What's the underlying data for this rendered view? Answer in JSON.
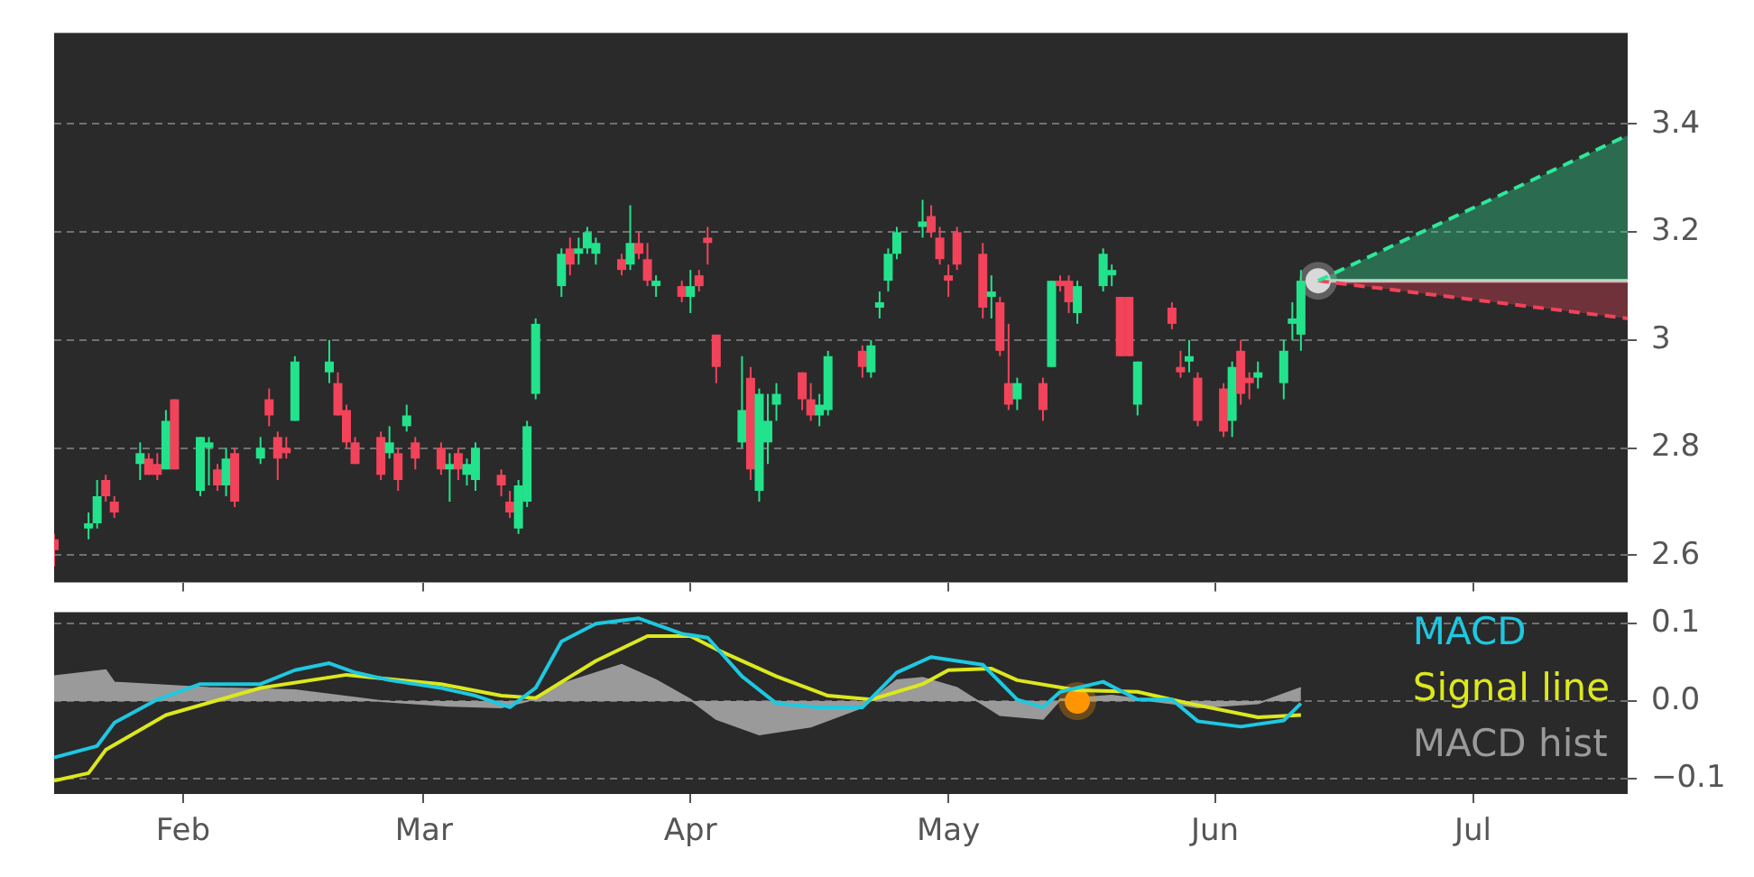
{
  "chart_data": [
    {
      "type": "candlestick",
      "x": [
        "--01-17",
        "--01-21",
        "--01-22",
        "--01-23",
        "--01-24",
        "--01-27",
        "--01-28",
        "--01-29",
        "--01-30",
        "--01-31",
        "--02-03",
        "--02-04",
        "--02-05",
        "--02-06",
        "--02-07",
        "--02-10",
        "--02-11",
        "--02-12",
        "--02-13",
        "--02-14",
        "--02-18",
        "--02-19",
        "--02-20",
        "--02-21",
        "--02-24",
        "--02-25",
        "--02-26",
        "--02-27",
        "--02-28",
        "--03-03",
        "--03-04",
        "--03-05",
        "--03-06",
        "--03-07",
        "--03-10",
        "--03-11",
        "--03-12",
        "--03-13",
        "--03-14",
        "--03-17",
        "--03-18",
        "--03-19",
        "--03-20",
        "--03-21",
        "--03-24",
        "--03-25",
        "--03-26",
        "--03-27",
        "--03-28",
        "--03-31",
        "--04-01",
        "--04-02",
        "--04-03",
        "--04-04",
        "--04-07",
        "--04-08",
        "--04-09",
        "--04-10",
        "--04-11",
        "--04-14",
        "--04-15",
        "--04-16",
        "--04-17",
        "--04-21",
        "--04-22",
        "--04-23",
        "--04-24",
        "--04-25",
        "--04-28",
        "--04-29",
        "--04-30",
        "--05-01",
        "--05-02",
        "--05-05",
        "--05-06",
        "--05-07",
        "--05-08",
        "--05-09",
        "--05-12",
        "--05-13",
        "--05-14",
        "--05-15",
        "--05-16",
        "--05-19",
        "--05-20",
        "--05-21",
        "--05-22",
        "--05-23",
        "--05-27",
        "--05-28",
        "--05-29",
        "--05-30",
        "--06-02",
        "--06-03",
        "--06-04",
        "--06-05",
        "--06-06",
        "--06-09",
        "--06-10",
        "--06-11"
      ],
      "ohlc": [
        [
          2.63,
          2.64,
          2.58,
          2.61
        ],
        [
          2.65,
          2.68,
          2.63,
          2.66
        ],
        [
          2.66,
          2.74,
          2.65,
          2.71
        ],
        [
          2.74,
          2.75,
          2.7,
          2.71
        ],
        [
          2.7,
          2.71,
          2.67,
          2.68
        ],
        [
          2.77,
          2.81,
          2.74,
          2.79
        ],
        [
          2.78,
          2.79,
          2.75,
          2.75
        ],
        [
          2.77,
          2.79,
          2.74,
          2.75
        ],
        [
          2.76,
          2.87,
          2.76,
          2.85
        ],
        [
          2.89,
          2.89,
          2.76,
          2.76
        ],
        [
          2.72,
          2.82,
          2.71,
          2.82
        ],
        [
          2.8,
          2.82,
          2.73,
          2.81
        ],
        [
          2.76,
          2.77,
          2.72,
          2.73
        ],
        [
          2.73,
          2.8,
          2.71,
          2.78
        ],
        [
          2.79,
          2.8,
          2.69,
          2.7
        ],
        [
          2.78,
          2.82,
          2.77,
          2.8
        ],
        [
          2.89,
          2.91,
          2.84,
          2.86
        ],
        [
          2.82,
          2.83,
          2.74,
          2.78
        ],
        [
          2.8,
          2.82,
          2.78,
          2.79
        ],
        [
          2.85,
          2.97,
          2.85,
          2.96
        ],
        [
          2.94,
          3.0,
          2.92,
          2.96
        ],
        [
          2.92,
          2.94,
          2.86,
          2.86
        ],
        [
          2.87,
          2.88,
          2.8,
          2.81
        ],
        [
          2.81,
          2.82,
          2.77,
          2.77
        ],
        [
          2.82,
          2.83,
          2.74,
          2.75
        ],
        [
          2.79,
          2.84,
          2.78,
          2.81
        ],
        [
          2.79,
          2.8,
          2.72,
          2.74
        ],
        [
          2.84,
          2.88,
          2.83,
          2.86
        ],
        [
          2.81,
          2.82,
          2.76,
          2.78
        ],
        [
          2.8,
          2.81,
          2.75,
          2.76
        ],
        [
          2.76,
          2.79,
          2.7,
          2.77
        ],
        [
          2.79,
          2.8,
          2.74,
          2.76
        ],
        [
          2.75,
          2.78,
          2.73,
          2.77
        ],
        [
          2.74,
          2.81,
          2.72,
          2.8
        ],
        [
          2.75,
          2.76,
          2.71,
          2.73
        ],
        [
          2.7,
          2.72,
          2.67,
          2.68
        ],
        [
          2.65,
          2.74,
          2.64,
          2.73
        ],
        [
          2.7,
          2.85,
          2.69,
          2.84
        ],
        [
          2.9,
          3.04,
          2.89,
          3.03
        ],
        [
          3.1,
          3.17,
          3.08,
          3.16
        ],
        [
          3.17,
          3.19,
          3.12,
          3.14
        ],
        [
          3.16,
          3.19,
          3.14,
          3.17
        ],
        [
          3.17,
          3.21,
          3.16,
          3.2
        ],
        [
          3.16,
          3.19,
          3.14,
          3.18
        ],
        [
          3.15,
          3.16,
          3.12,
          3.13
        ],
        [
          3.14,
          3.25,
          3.13,
          3.18
        ],
        [
          3.18,
          3.2,
          3.15,
          3.16
        ],
        [
          3.15,
          3.18,
          3.1,
          3.11
        ],
        [
          3.1,
          3.12,
          3.08,
          3.11
        ],
        [
          3.1,
          3.11,
          3.07,
          3.08
        ],
        [
          3.08,
          3.13,
          3.05,
          3.1
        ],
        [
          3.12,
          3.13,
          3.09,
          3.1
        ],
        [
          3.19,
          3.21,
          3.14,
          3.18
        ],
        [
          3.01,
          3.01,
          2.92,
          2.95
        ],
        [
          2.81,
          2.97,
          2.8,
          2.87
        ],
        [
          2.93,
          2.95,
          2.74,
          2.76
        ],
        [
          2.72,
          2.91,
          2.7,
          2.9
        ],
        [
          2.81,
          2.9,
          2.77,
          2.85
        ],
        [
          2.88,
          2.92,
          2.85,
          2.9
        ],
        [
          2.94,
          2.94,
          2.87,
          2.89
        ],
        [
          2.89,
          2.92,
          2.85,
          2.86
        ],
        [
          2.86,
          2.9,
          2.84,
          2.88
        ],
        [
          2.87,
          2.98,
          2.86,
          2.97
        ],
        [
          2.98,
          2.99,
          2.93,
          2.95
        ],
        [
          2.94,
          3.0,
          2.93,
          2.99
        ],
        [
          3.06,
          3.09,
          3.04,
          3.07
        ],
        [
          3.11,
          3.17,
          3.09,
          3.16
        ],
        [
          3.16,
          3.21,
          3.15,
          3.2
        ],
        [
          3.21,
          3.26,
          3.19,
          3.22
        ],
        [
          3.23,
          3.25,
          3.19,
          3.2
        ],
        [
          3.19,
          3.21,
          3.14,
          3.15
        ],
        [
          3.12,
          3.14,
          3.08,
          3.11
        ],
        [
          3.2,
          3.21,
          3.13,
          3.14
        ],
        [
          3.16,
          3.18,
          3.04,
          3.06
        ],
        [
          3.08,
          3.12,
          3.04,
          3.09
        ],
        [
          3.07,
          3.08,
          2.97,
          2.98
        ],
        [
          2.92,
          3.03,
          2.87,
          2.88
        ],
        [
          2.89,
          2.93,
          2.87,
          2.92
        ],
        [
          2.92,
          2.93,
          2.85,
          2.87
        ],
        [
          2.95,
          3.11,
          2.95,
          3.11
        ],
        [
          3.11,
          3.12,
          3.09,
          3.1
        ],
        [
          3.11,
          3.12,
          3.05,
          3.07
        ],
        [
          3.05,
          3.11,
          3.03,
          3.1
        ],
        [
          3.1,
          3.17,
          3.09,
          3.16
        ],
        [
          3.12,
          3.14,
          3.1,
          3.13
        ],
        [
          3.08,
          3.08,
          2.97,
          2.97
        ],
        [
          3.08,
          3.08,
          2.97,
          2.97
        ],
        [
          2.88,
          2.96,
          2.86,
          2.96
        ],
        [
          3.06,
          3.07,
          3.02,
          3.03
        ],
        [
          2.95,
          2.98,
          2.93,
          2.94
        ],
        [
          2.96,
          3.0,
          2.94,
          2.97
        ],
        [
          2.93,
          2.94,
          2.84,
          2.85
        ],
        [
          2.91,
          2.92,
          2.82,
          2.83
        ],
        [
          2.85,
          2.96,
          2.82,
          2.95
        ],
        [
          2.98,
          3.0,
          2.88,
          2.9
        ],
        [
          2.93,
          2.94,
          2.89,
          2.92
        ],
        [
          2.93,
          2.96,
          2.91,
          2.94
        ],
        [
          2.92,
          3.0,
          2.89,
          2.98
        ],
        [
          3.03,
          3.07,
          3.0,
          3.04
        ],
        [
          3.01,
          3.13,
          2.98,
          3.11
        ]
      ],
      "colors": [
        "#f2435a",
        "#22e38c",
        "#22e38c",
        "#f2435a",
        "#f2435a",
        "#22e38c",
        "#f2435a",
        "#f2435a",
        "#22e38c",
        "#f2435a",
        "#22e38c",
        "#22e38c",
        "#f2435a",
        "#22e38c",
        "#f2435a",
        "#22e38c",
        "#f2435a",
        "#f2435a",
        "#f2435a",
        "#22e38c",
        "#22e38c",
        "#f2435a",
        "#f2435a",
        "#f2435a",
        "#f2435a",
        "#22e38c",
        "#f2435a",
        "#22e38c",
        "#f2435a",
        "#f2435a",
        "#22e38c",
        "#f2435a",
        "#22e38c",
        "#22e38c",
        "#f2435a",
        "#f2435a",
        "#22e38c",
        "#22e38c",
        "#22e38c",
        "#22e38c",
        "#f2435a",
        "#22e38c",
        "#22e38c",
        "#22e38c",
        "#f2435a",
        "#22e38c",
        "#f2435a",
        "#f2435a",
        "#22e38c",
        "#f2435a",
        "#22e38c",
        "#f2435a",
        "#f2435a",
        "#f2435a",
        "#22e38c",
        "#f2435a",
        "#22e38c",
        "#22e38c",
        "#22e38c",
        "#f2435a",
        "#f2435a",
        "#22e38c",
        "#22e38c",
        "#f2435a",
        "#22e38c",
        "#22e38c",
        "#22e38c",
        "#22e38c",
        "#22e38c",
        "#f2435a",
        "#f2435a",
        "#f2435a",
        "#f2435a",
        "#f2435a",
        "#22e38c",
        "#f2435a",
        "#f2435a",
        "#22e38c",
        "#f2435a",
        "#22e38c",
        "#f2435a",
        "#f2435a",
        "#22e38c",
        "#22e38c",
        "#22e38c",
        "#f2435a",
        "#f2435a",
        "#22e38c",
        "#f2435a",
        "#f2435a",
        "#22e38c",
        "#f2435a",
        "#f2435a",
        "#22e38c",
        "#f2435a",
        "#f2435a",
        "#22e38c",
        "#22e38c",
        "#22e38c",
        "#22e38c"
      ],
      "series": [
        {
          "type": "line",
          "color": "#2ee89a",
          "line_style": "dashed",
          "x": [
            "--06-13",
            "--07-19"
          ],
          "values": [
            3.11,
            3.38
          ],
          "lower": [
            3.11,
            3.11
          ],
          "upper": [
            3.11,
            3.38
          ]
        },
        {
          "type": "line",
          "color": "#f2435a",
          "line_style": "dashed",
          "x": [
            "--06-13",
            "--07-19"
          ],
          "values": [
            3.11,
            3.04
          ],
          "lower": [
            3.11,
            3.04
          ],
          "upper": [
            3.11,
            3.11
          ]
        },
        {
          "type": "line",
          "color": "#e6e6e6",
          "line_style": "solid",
          "x": [
            "--06-13",
            "--07-19"
          ],
          "values": [
            3.11,
            3.11
          ]
        },
        {
          "type": "scatter",
          "color": "#d9d9d9",
          "marker": "circle",
          "x": [
            "--06-13"
          ],
          "values": [
            3.11
          ]
        }
      ],
      "xlim": [
        "--01-17",
        "--07-19"
      ],
      "xticks": [
        {
          "value": "--02-01",
          "label": null
        },
        {
          "value": "--03-01",
          "label": null
        },
        {
          "value": "--04-01",
          "label": null
        },
        {
          "value": "--05-01",
          "label": null
        },
        {
          "value": "--06-01",
          "label": null
        },
        {
          "value": "--07-01",
          "label": null
        }
      ],
      "ylim": [
        2.55,
        3.57
      ],
      "yticks": [
        2.6,
        2.8,
        3.0,
        3.2,
        3.4
      ],
      "grid": true,
      "tick_labels": "y"
    },
    {
      "type": "line",
      "series": [
        {
          "type": "area",
          "name": "MACD hist",
          "color": "#9a9a9a",
          "x": [
            "--01-17",
            "--01-23",
            "--01-24",
            "--02-04",
            "--02-14",
            "--02-24",
            "--03-04",
            "--03-10",
            "--03-13",
            "--03-17",
            "--03-24",
            "--03-28",
            "--04-01",
            "--04-04",
            "--04-09",
            "--04-15",
            "--04-21",
            "--04-25",
            "--04-28",
            "--05-02",
            "--05-07",
            "--05-12",
            "--05-14",
            "--05-20",
            "--05-27",
            "--05-30",
            "--06-06",
            "--06-11"
          ],
          "values": [
            0.032,
            0.04,
            0.024,
            0.017,
            0.014,
            0,
            -0.006,
            -0.008,
            0,
            0.022,
            0.047,
            0.027,
            0.002,
            -0.023,
            -0.043,
            -0.033,
            -0.008,
            0.027,
            0.03,
            0.017,
            -0.018,
            -0.023,
            0.002,
            0.007,
            -0.003,
            -0.008,
            -0.003,
            0.017
          ]
        },
        {
          "type": "line",
          "name": "MACD",
          "color": "#1ec8e0",
          "x": [
            "--01-17",
            "--01-22",
            "--01-24",
            "--01-29",
            "--02-03",
            "--02-10",
            "--02-14",
            "--02-18",
            "--02-21",
            "--02-25",
            "--03-03",
            "--03-07",
            "--03-11",
            "--03-14",
            "--03-17",
            "--03-21",
            "--03-26",
            "--03-31",
            "--04-03",
            "--04-07",
            "--04-11",
            "--04-16",
            "--04-21",
            "--04-25",
            "--04-29",
            "--05-05",
            "--05-09",
            "--05-12",
            "--05-14",
            "--05-19",
            "--05-23",
            "--05-27",
            "--05-30",
            "--06-04",
            "--06-09",
            "--06-11"
          ],
          "values": [
            -0.073,
            -0.058,
            -0.028,
            0.002,
            0.022,
            0.022,
            0.04,
            0.049,
            0.037,
            0.027,
            0.017,
            0.007,
            -0.008,
            0.017,
            0.077,
            0.1,
            0.107,
            0.087,
            0.082,
            0.032,
            -0.003,
            -0.008,
            -0.008,
            0.037,
            0.057,
            0.047,
            0.002,
            -0.008,
            0.012,
            0.025,
            0.002,
            0.002,
            -0.026,
            -0.033,
            -0.025,
            -0.003
          ]
        },
        {
          "type": "line",
          "name": "Signal line",
          "color": "#dce81e",
          "x": [
            "--01-17",
            "--01-21",
            "--01-23",
            "--01-30",
            "--02-10",
            "--02-20",
            "--03-03",
            "--03-10",
            "--03-14",
            "--03-21",
            "--03-27",
            "--04-01",
            "--04-04",
            "--04-11",
            "--04-17",
            "--04-22",
            "--04-28",
            "--05-01",
            "--05-06",
            "--05-09",
            "--05-16",
            "--05-23",
            "--05-29",
            "--06-06",
            "--06-11"
          ],
          "values": [
            -0.103,
            -0.093,
            -0.063,
            -0.018,
            0.017,
            0.034,
            0.022,
            0.007,
            0.004,
            0.052,
            0.084,
            0.084,
            0.067,
            0.032,
            0.007,
            0.002,
            0.022,
            0.04,
            0.042,
            0.027,
            0.014,
            0.012,
            -0.003,
            -0.021,
            -0.018
          ]
        },
        {
          "type": "scatter",
          "color": "#ff9500",
          "marker": "circle",
          "x": [
            "--05-16"
          ],
          "values": [
            0
          ]
        }
      ],
      "xlim": [
        "--01-17",
        "--07-19"
      ],
      "xticks": [
        {
          "value": "--02-01",
          "label": "Feb"
        },
        {
          "value": "--03-01",
          "label": "Mar"
        },
        {
          "value": "--04-01",
          "label": "Apr"
        },
        {
          "value": "--05-01",
          "label": "May"
        },
        {
          "value": "--06-01",
          "label": "Jun"
        },
        {
          "value": "--07-01",
          "label": "Jul"
        }
      ],
      "ylim": [
        -0.12,
        0.115
      ],
      "yticks": [
        0.1,
        {
          "value": 0,
          "label": "0.0"
        },
        {
          "value": -0.1,
          "label": "−0.1"
        }
      ],
      "grid": true,
      "legend": "right"
    }
  ]
}
